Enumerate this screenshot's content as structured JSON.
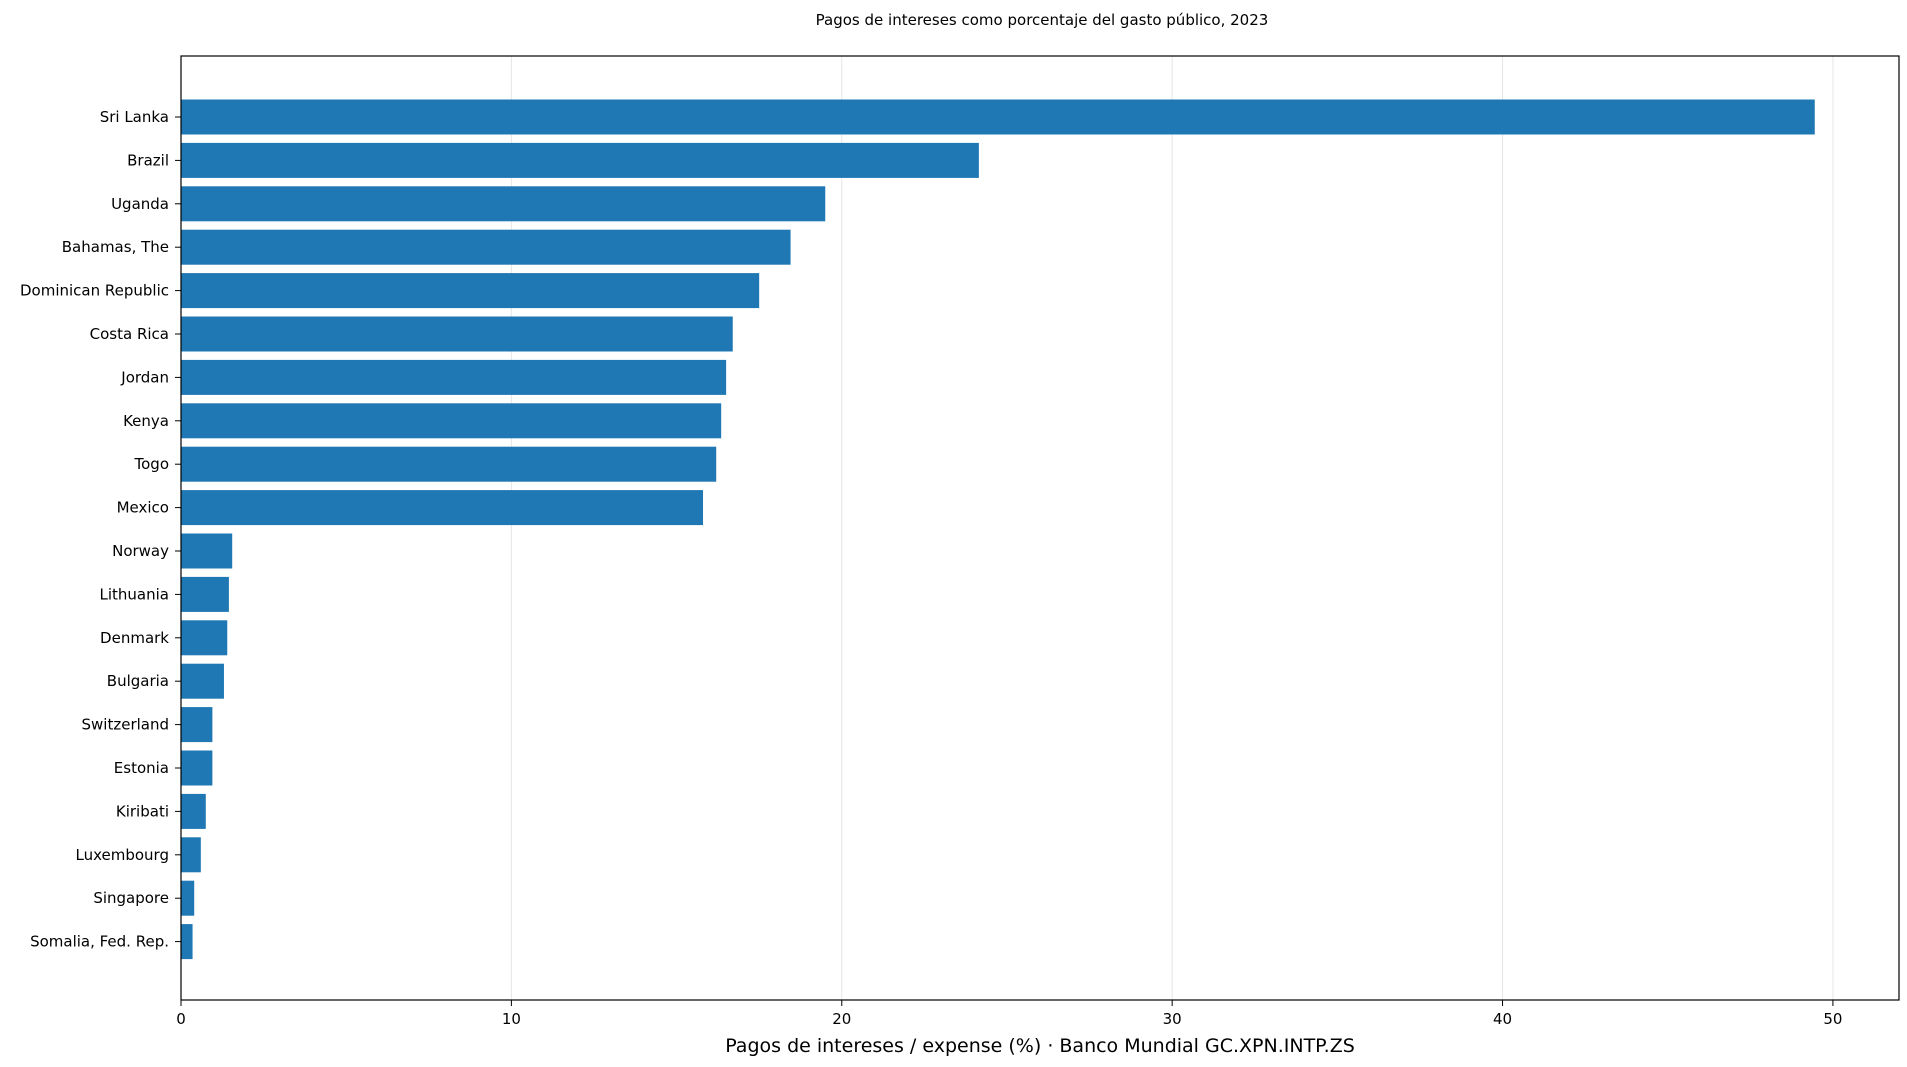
{
  "chart_data": {
    "type": "bar",
    "orientation": "horizontal",
    "title": "Pagos de intereses como porcentaje del gasto público, 2023",
    "xlabel": "Pagos de intereses / expense (%) · Banco Mundial GC.XPN.INTP.ZS",
    "ylabel": "",
    "xlim": [
      0,
      52
    ],
    "xticks": [
      0,
      10,
      20,
      30,
      40,
      50
    ],
    "grid": "x",
    "bar_color": "#1f77b4",
    "categories": [
      "Sri Lanka",
      "Brazil",
      "Uganda",
      "Bahamas, The",
      "Dominican Republic",
      "Costa Rica",
      "Jordan",
      "Kenya",
      "Togo",
      "Mexico",
      "Norway",
      "Lithuania",
      "Denmark",
      "Bulgaria",
      "Switzerland",
      "Estonia",
      "Kiribati",
      "Luxembourg",
      "Singapore",
      "Somalia, Fed. Rep."
    ],
    "values": [
      49.45,
      24.15,
      19.5,
      18.45,
      17.5,
      16.7,
      16.5,
      16.35,
      16.2,
      15.8,
      1.55,
      1.45,
      1.4,
      1.3,
      0.95,
      0.95,
      0.75,
      0.6,
      0.4,
      0.35
    ]
  }
}
